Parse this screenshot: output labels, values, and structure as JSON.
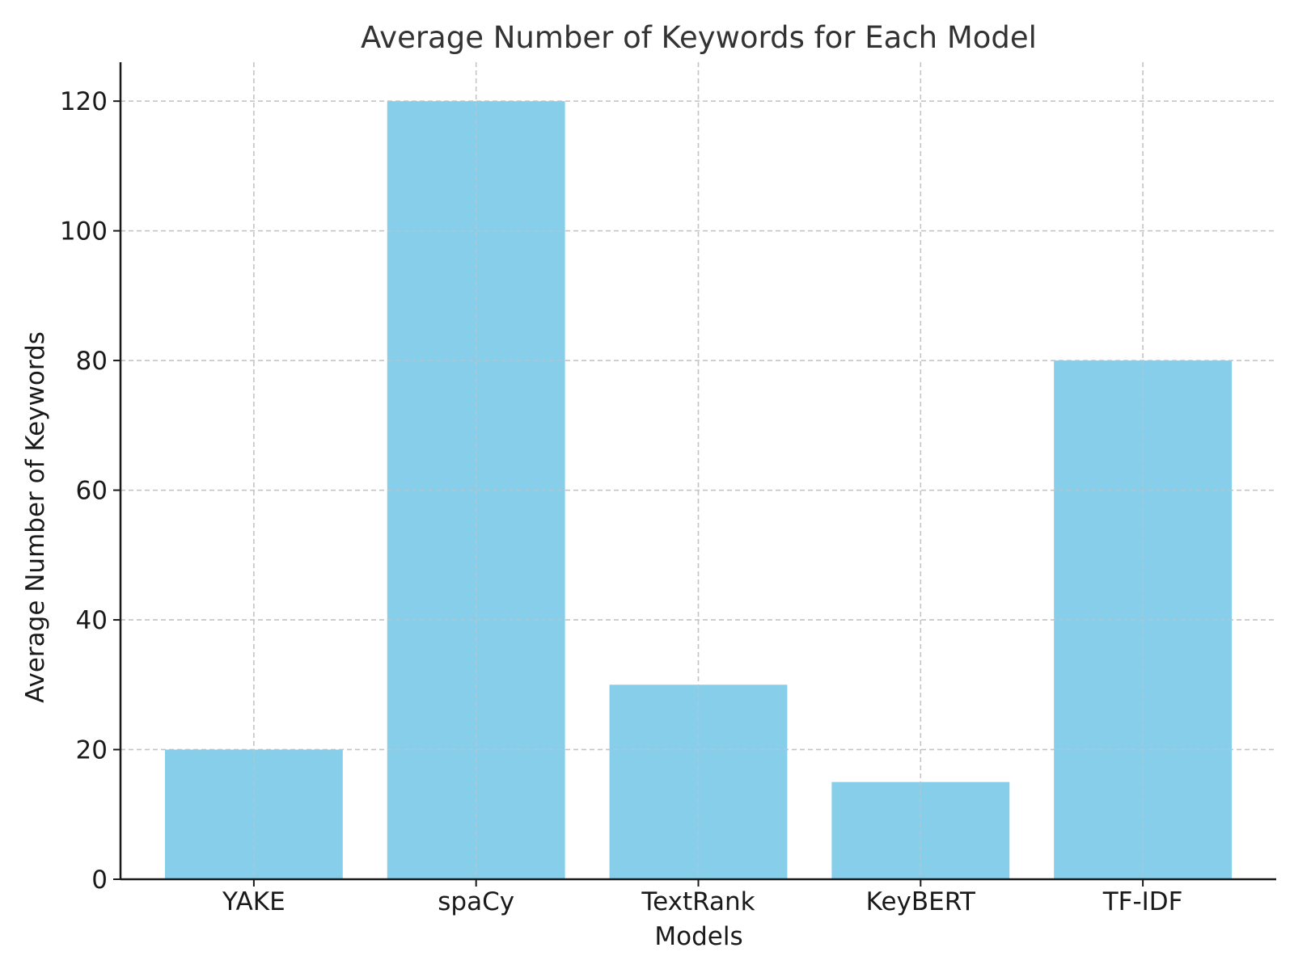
{
  "chart_data": {
    "type": "bar",
    "title": "Average Number of Keywords for Each Model",
    "xlabel": "Models",
    "ylabel": "Average Number of Keywords",
    "categories": [
      "YAKE",
      "spaCy",
      "TextRank",
      "KeyBERT",
      "TF-IDF"
    ],
    "values": [
      20,
      120,
      30,
      15,
      80
    ],
    "ylim": [
      0,
      126
    ],
    "yticks": [
      0,
      20,
      40,
      60,
      80,
      100,
      120
    ],
    "grid": true,
    "bar_color": "#87CEEB",
    "legend": false
  }
}
